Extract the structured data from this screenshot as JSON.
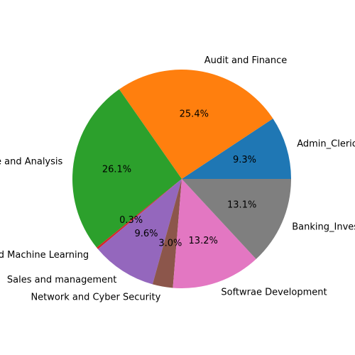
{
  "chart_data": {
    "type": "pie",
    "start_angle_deg": 0,
    "direction": "counterclockwise",
    "slices": [
      {
        "label": "Admin_Clerical",
        "percent": 9.3,
        "percent_label": "9.3%",
        "color": "#1f77b4"
      },
      {
        "label": "Audit and Finance",
        "percent": 25.4,
        "percent_label": "25.4%",
        "color": "#ff7f0e"
      },
      {
        "label": "Data Science and Analysis",
        "percent": 26.1,
        "percent_label": "26.1%",
        "color": "#2ca02c"
      },
      {
        "label": "AI and Machine Learning",
        "percent": 0.3,
        "percent_label": "0.3%",
        "color": "#d62728"
      },
      {
        "label": "Sales and management",
        "percent": 9.6,
        "percent_label": "9.6%",
        "color": "#9467bd"
      },
      {
        "label": "Network and Cyber Security",
        "percent": 3.0,
        "percent_label": "3.0%",
        "color": "#8c564b"
      },
      {
        "label": "Softwrae Development",
        "percent": 13.2,
        "percent_label": "13.2%",
        "color": "#e377c2"
      },
      {
        "label": "Banking_Investment",
        "percent": 13.1,
        "percent_label": "13.1%",
        "color": "#7f7f7f"
      }
    ]
  }
}
